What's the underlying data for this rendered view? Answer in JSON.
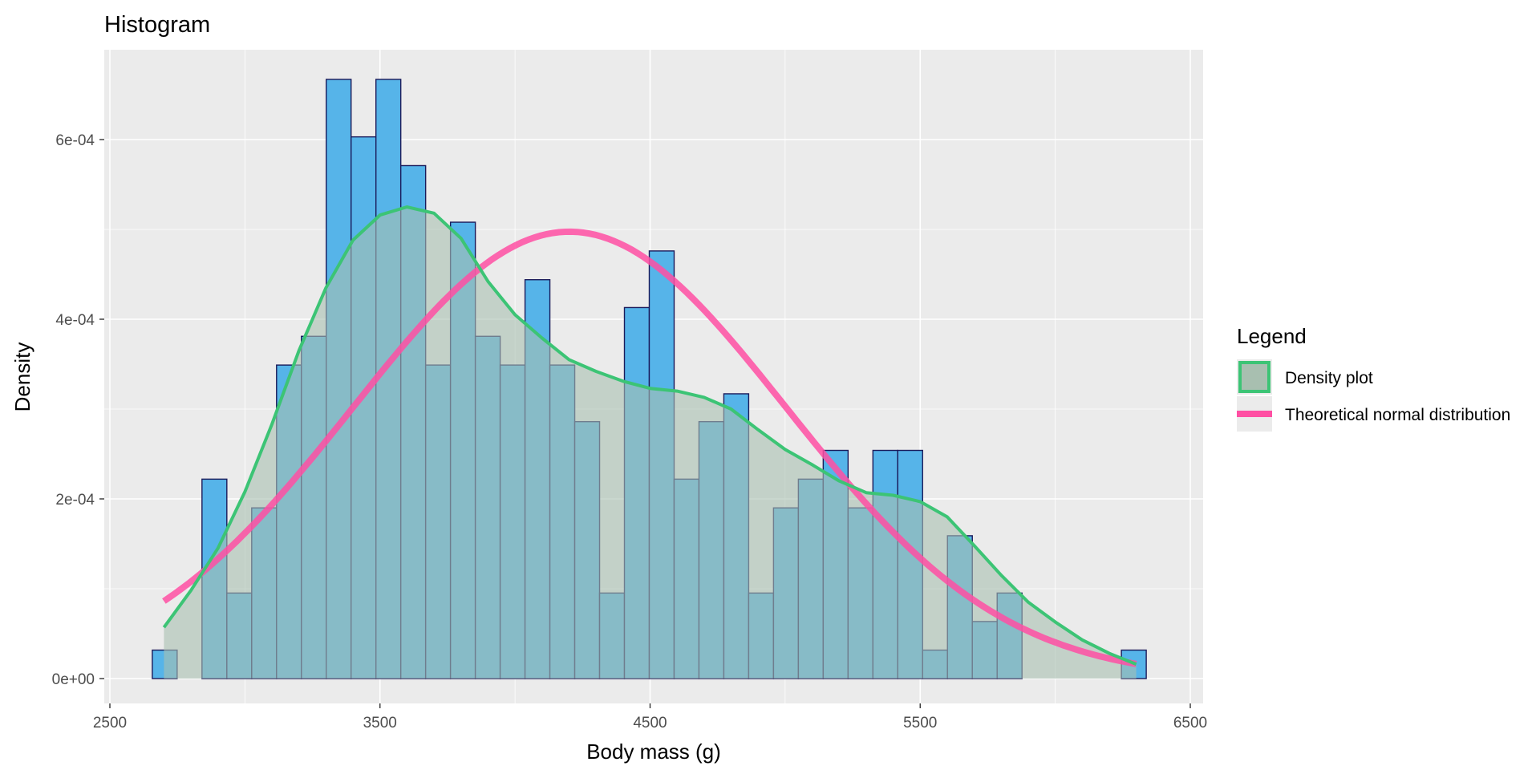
{
  "chart_data": {
    "type": "bar",
    "title": "Histogram",
    "xlabel": "Body mass (g)",
    "ylabel": "Density",
    "xlim": [
      2500,
      6500
    ],
    "ylim": [
      0,
      0.0007
    ],
    "x_ticks": [
      2500,
      3500,
      4500,
      5500,
      6500
    ],
    "y_ticks": [
      {
        "value": 0,
        "label": "0e+00"
      },
      {
        "value": 0.0002,
        "label": "2e-04"
      },
      {
        "value": 0.0004,
        "label": "4e-04"
      },
      {
        "value": 0.0006,
        "label": "6e-04"
      }
    ],
    "grid": true,
    "legend_placement": "right",
    "legend": {
      "title": "Legend",
      "items": [
        {
          "key": "density",
          "label": "Density plot"
        },
        {
          "key": "normal",
          "label": "Theoretical normal distribution"
        }
      ]
    },
    "histogram": {
      "bin_width": 92,
      "bin_starts": [
        2657,
        2749,
        2841,
        2933,
        3025,
        3117,
        3209,
        3301,
        3393,
        3485,
        3577,
        3669,
        3761,
        3853,
        3945,
        4037,
        4129,
        4221,
        4313,
        4405,
        4497,
        4589,
        4681,
        4773,
        4865,
        4957,
        5049,
        5141,
        5233,
        5325,
        5417,
        5509,
        5601,
        5693,
        5785,
        5877,
        5969,
        6061,
        6153,
        6245
      ],
      "values": [
        3.17e-05,
        0,
        0.000222,
        9.52e-05,
        0.00019,
        0.000349,
        0.000381,
        0.000667,
        0.000603,
        0.000667,
        0.000571,
        0.000349,
        0.000508,
        0.000381,
        0.000349,
        0.000444,
        0.000349,
        0.000286,
        9.52e-05,
        0.000413,
        0.000476,
        0.000222,
        0.000286,
        0.000317,
        9.52e-05,
        0.00019,
        0.000222,
        0.000254,
        0.00019,
        0.000254,
        0.000254,
        3.17e-05,
        0.000159,
        6.35e-05,
        9.52e-05,
        0,
        0,
        0,
        0,
        3.17e-05
      ]
    },
    "density_curve": {
      "x": [
        2700,
        2800,
        2900,
        3000,
        3100,
        3200,
        3300,
        3400,
        3500,
        3600,
        3700,
        3800,
        3900,
        4000,
        4100,
        4200,
        4300,
        4400,
        4500,
        4600,
        4700,
        4800,
        4900,
        5000,
        5100,
        5200,
        5300,
        5400,
        5500,
        5600,
        5700,
        5800,
        5900,
        6000,
        6100,
        6200,
        6300
      ],
      "y": [
        5.7e-05,
        9.8e-05,
        0.000145,
        0.000208,
        0.000283,
        0.000365,
        0.000435,
        0.000488,
        0.000516,
        0.000525,
        0.000518,
        0.00049,
        0.000442,
        0.000405,
        0.000379,
        0.000355,
        0.000342,
        0.000331,
        0.000323,
        0.00032,
        0.000313,
        0.0003,
        0.000277,
        0.000255,
        0.000238,
        0.00022,
        0.000207,
        0.000204,
        0.000197,
        0.00018,
        0.000148,
        0.000115,
        8.5e-05,
        6.3e-05,
        4.3e-05,
        2.8e-05,
        1.6e-05
      ]
    },
    "normal_mean": 4201.75,
    "normal_sd": 801.95
  },
  "colors": {
    "panel_bg": "#ebebeb",
    "grid": "#ffffff",
    "bar_fill": "#56b4e9",
    "bar_stroke": "#1a1a5a",
    "density_line": "#3cc475",
    "density_fill": "#a8bfb0",
    "normal_line": "#ff4fa3"
  }
}
